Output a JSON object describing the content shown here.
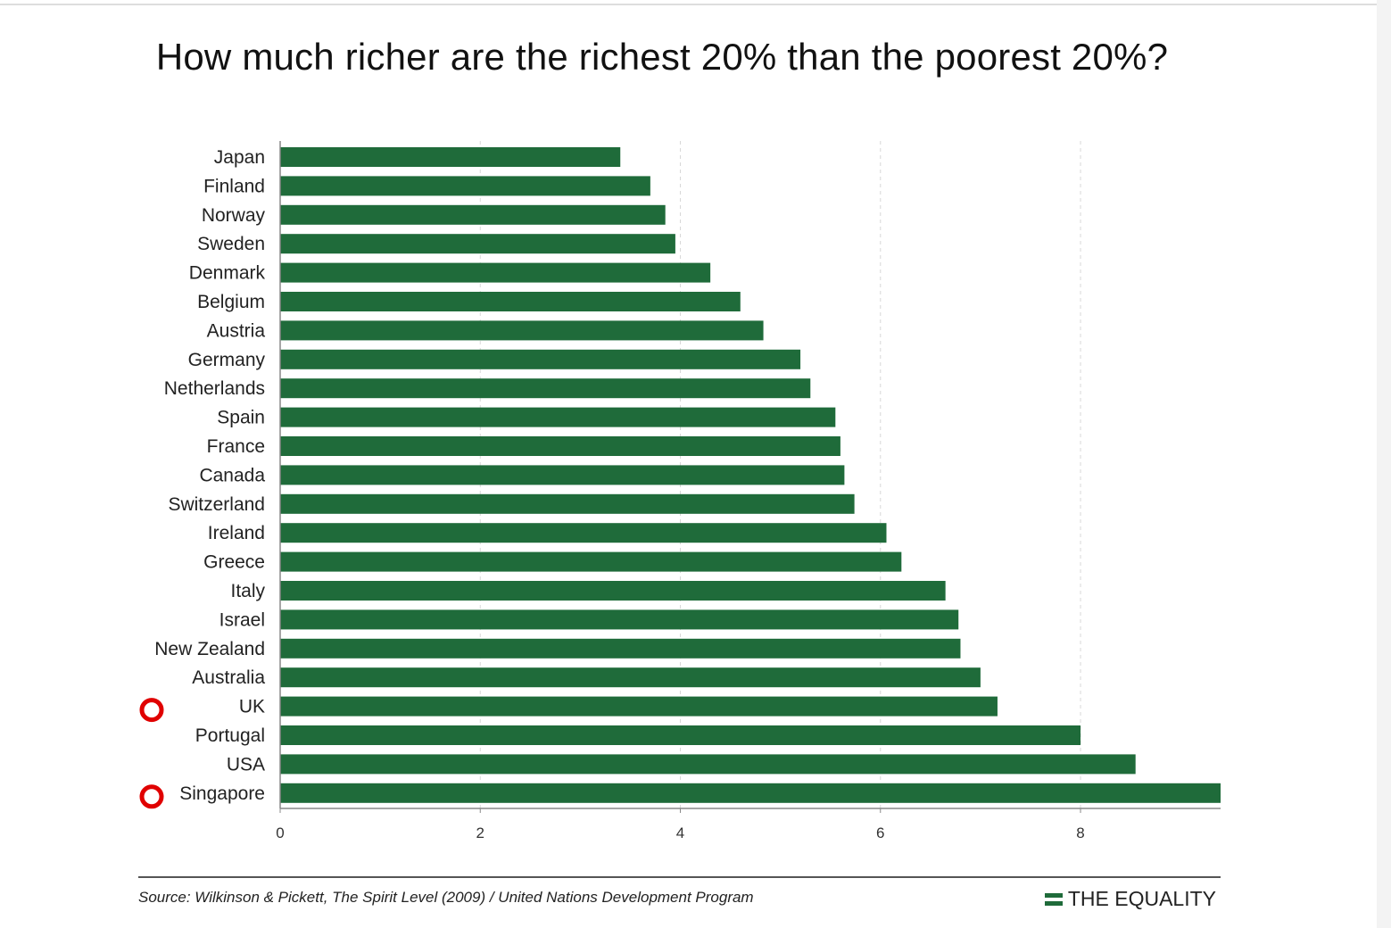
{
  "chart_data": {
    "type": "bar",
    "orientation": "horizontal",
    "title": "How much richer are the richest 20% than the poorest 20%?",
    "categories": [
      "Japan",
      "Finland",
      "Norway",
      "Sweden",
      "Denmark",
      "Belgium",
      "Austria",
      "Germany",
      "Netherlands",
      "Spain",
      "France",
      "Canada",
      "Switzerland",
      "Ireland",
      "Greece",
      "Italy",
      "Israel",
      "New Zealand",
      "Australia",
      "UK",
      "Portugal",
      "USA",
      "Singapore"
    ],
    "values": [
      3.4,
      3.7,
      3.85,
      3.95,
      4.3,
      4.6,
      4.83,
      5.2,
      5.3,
      5.55,
      5.6,
      5.64,
      5.74,
      6.06,
      6.21,
      6.65,
      6.78,
      6.8,
      7.0,
      7.17,
      8.0,
      8.55,
      9.4
    ],
    "xlim": [
      0,
      9.4
    ],
    "xticks": [
      "0",
      "2",
      "4",
      "6",
      "8"
    ],
    "grid": "vertical dashed at 4, 6, 8",
    "bar_color": "#1f6b3a",
    "highlighted": [
      "UK",
      "Singapore"
    ],
    "highlight_color": "#e00000"
  },
  "source": "Source: Wilkinson & Pickett, The Spirit Level (2009) / United Nations Development Program",
  "brand": "THE EQUALITY"
}
